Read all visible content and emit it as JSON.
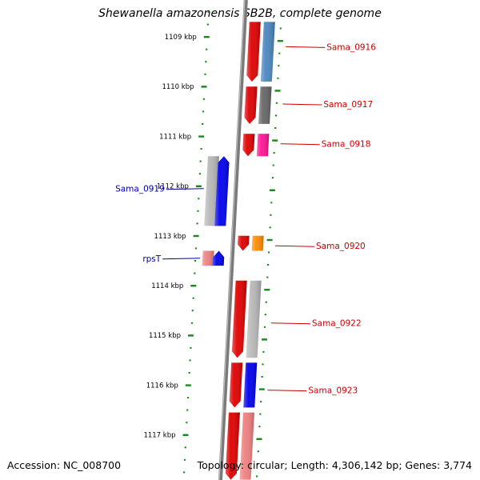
{
  "title": "Shewanella amazonensis SB2B, complete genome",
  "footer": {
    "accession": "Accession: NC_008700",
    "summary": "Topology: circular; Length: 4,306,142 bp; Genes: 3,774"
  },
  "colors": {
    "backbone": "#7a7a7a",
    "tick": "#1a8a1a",
    "label_forward": "#cc0000",
    "label_reverse": "#0000aa"
  },
  "scale": {
    "unit": "kbp",
    "labels": [
      "1109 kbp",
      "1110 kbp",
      "1111 kbp",
      "1112 kbp",
      "1113 kbp",
      "1114 kbp",
      "1115 kbp",
      "1116 kbp",
      "1117 kbp"
    ]
  },
  "features": [
    {
      "track": "outer-cds",
      "start_kbp": 1108.7,
      "end_kbp": 1109.9,
      "color": "#e00000",
      "strand": "-"
    },
    {
      "track": "outer-cog",
      "start_kbp": 1108.7,
      "end_kbp": 1109.9,
      "color": "#4a86c0"
    },
    {
      "track": "outer-cds",
      "start_kbp": 1110.0,
      "end_kbp": 1110.75,
      "color": "#e00000",
      "strand": "-"
    },
    {
      "track": "outer-cog",
      "start_kbp": 1110.0,
      "end_kbp": 1110.75,
      "color": "#666666"
    },
    {
      "track": "outer-cds",
      "start_kbp": 1110.95,
      "end_kbp": 1111.4,
      "color": "#e00000",
      "strand": "-"
    },
    {
      "track": "outer-cog",
      "start_kbp": 1110.95,
      "end_kbp": 1111.4,
      "color": "#ff1493"
    },
    {
      "track": "inner-cog",
      "start_kbp": 1111.4,
      "end_kbp": 1112.8,
      "color": "#b8b8b8"
    },
    {
      "track": "inner-cds",
      "start_kbp": 1111.4,
      "end_kbp": 1112.8,
      "color": "#0000ee",
      "strand": "+"
    },
    {
      "track": "outer-cds",
      "start_kbp": 1113.0,
      "end_kbp": 1113.3,
      "color": "#e00000",
      "strand": "-"
    },
    {
      "track": "outer-cog",
      "start_kbp": 1113.0,
      "end_kbp": 1113.3,
      "color": "#ff8c00"
    },
    {
      "track": "inner-cog",
      "start_kbp": 1113.3,
      "end_kbp": 1113.6,
      "color": "#f08080"
    },
    {
      "track": "inner-cds",
      "start_kbp": 1113.3,
      "end_kbp": 1113.6,
      "color": "#0000ee",
      "strand": "+"
    },
    {
      "track": "outer-cds",
      "start_kbp": 1113.9,
      "end_kbp": 1115.45,
      "color": "#e00000",
      "strand": "-"
    },
    {
      "track": "outer-cog",
      "start_kbp": 1113.9,
      "end_kbp": 1115.45,
      "color": "#b8b8b8"
    },
    {
      "track": "outer-cds",
      "start_kbp": 1115.55,
      "end_kbp": 1116.45,
      "color": "#e00000",
      "strand": "-"
    },
    {
      "track": "outer-cog",
      "start_kbp": 1115.55,
      "end_kbp": 1116.45,
      "color": "#0000ee"
    },
    {
      "track": "outer-cds",
      "start_kbp": 1116.55,
      "end_kbp": 1117.9,
      "color": "#e00000",
      "strand": "-"
    },
    {
      "track": "outer-cog",
      "start_kbp": 1116.55,
      "end_kbp": 1117.9,
      "color": "#f08080"
    }
  ],
  "labels": [
    {
      "text": "Sama_0916",
      "side": "right",
      "kbp": 1109.2
    },
    {
      "text": "Sama_0917",
      "side": "right",
      "kbp": 1110.35
    },
    {
      "text": "Sama_0918",
      "side": "right",
      "kbp": 1111.15
    },
    {
      "text": "Sama_0919",
      "side": "left",
      "kbp": 1112.05
    },
    {
      "text": "Sama_0920",
      "side": "right",
      "kbp": 1113.2
    },
    {
      "text": "rpsT",
      "side": "left",
      "kbp": 1113.45
    },
    {
      "text": "Sama_0922",
      "side": "right",
      "kbp": 1114.75
    },
    {
      "text": "Sama_0923",
      "side": "right",
      "kbp": 1116.1
    }
  ]
}
